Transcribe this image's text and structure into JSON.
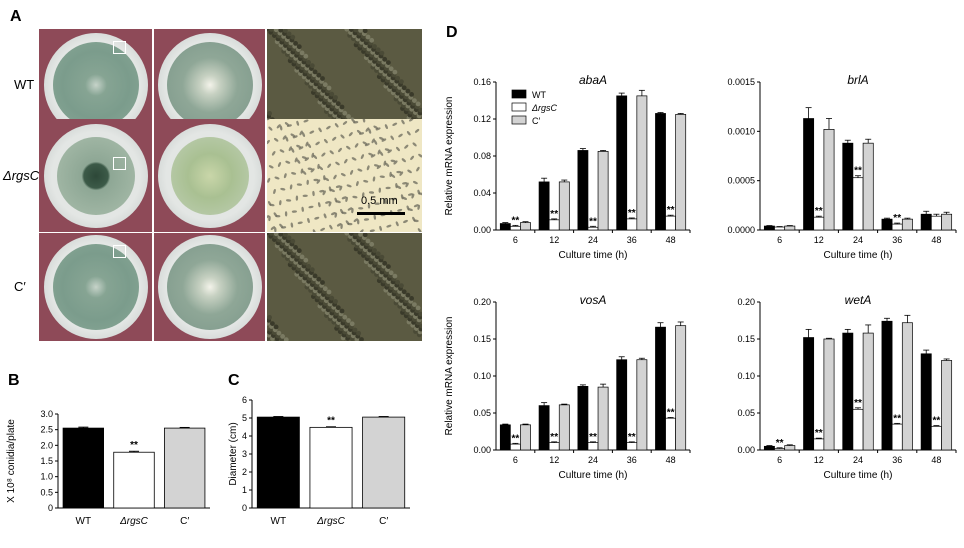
{
  "panel_labels": {
    "a": "A",
    "b": "B",
    "c": "C",
    "d": "D"
  },
  "panel_a": {
    "rows": [
      {
        "label": "WT",
        "style": "wt"
      },
      {
        "label": "ΔrgsC",
        "style": "mut"
      },
      {
        "label": "C′",
        "style": "wt"
      }
    ],
    "scale_bar": "0.5 mm",
    "colors": {
      "background": "#8e4a58",
      "colony_wt": "#7b9c8c",
      "colony_mut": "#9fb5a3",
      "conidia_dark": "#5b5a42",
      "conidia_light": "#efe7c4"
    }
  },
  "chart_data": [
    {
      "id": "B",
      "type": "bar",
      "categories": [
        "WT",
        "ΔrgsC",
        "C′"
      ],
      "values": [
        2.55,
        1.78,
        2.55
      ],
      "errors": [
        0.03,
        0.03,
        0.02
      ],
      "colors": [
        "#000000",
        "#ffffff",
        "#d3d3d3"
      ],
      "ylabel": "X 10⁸ conidia/plate",
      "ylim": [
        0,
        3.0
      ],
      "yticks": [
        "0",
        "0.5",
        "1.0",
        "1.5",
        "2.0",
        "2.5",
        "3.0"
      ],
      "significance": [
        "",
        "**",
        ""
      ]
    },
    {
      "id": "C",
      "type": "bar",
      "categories": [
        "WT",
        "ΔrgsC",
        "C′"
      ],
      "values": [
        5.05,
        4.48,
        5.05
      ],
      "errors": [
        0.03,
        0.03,
        0.03
      ],
      "colors": [
        "#000000",
        "#ffffff",
        "#d3d3d3"
      ],
      "ylabel": "Diameter (cm)",
      "ylim": [
        0,
        6
      ],
      "yticks": [
        "0",
        "1",
        "2",
        "3",
        "4",
        "5",
        "6"
      ],
      "significance": [
        "",
        "**",
        ""
      ]
    },
    {
      "id": "D-abaA",
      "type": "bar",
      "title": "abaA",
      "categories": [
        "6",
        "12",
        "24",
        "36",
        "48"
      ],
      "xlabel": "Culture time (h)",
      "ylabel": "Relative mRNA expression",
      "ylim": [
        0,
        0.16
      ],
      "yticks": [
        "0.00",
        "0.04",
        "0.08",
        "0.12",
        "0.16"
      ],
      "legend": [
        "WT",
        "ΔrgsC",
        "C′"
      ],
      "series": [
        {
          "name": "WT",
          "values": [
            0.007,
            0.052,
            0.086,
            0.145,
            0.126
          ],
          "errors": [
            0.001,
            0.004,
            0.002,
            0.003,
            0.001
          ]
        },
        {
          "name": "ΔrgsC",
          "values": [
            0.004,
            0.011,
            0.003,
            0.012,
            0.015
          ],
          "errors": [
            0.001,
            0.001,
            0.001,
            0.001,
            0.001
          ]
        },
        {
          "name": "C′",
          "values": [
            0.008,
            0.052,
            0.085,
            0.145,
            0.125
          ],
          "errors": [
            0.001,
            0.002,
            0.001,
            0.006,
            0.001
          ]
        }
      ],
      "significance": [
        "**",
        "**",
        "**",
        "**",
        "**"
      ]
    },
    {
      "id": "D-brlA",
      "type": "bar",
      "title": "brlA",
      "categories": [
        "6",
        "12",
        "24",
        "36",
        "48"
      ],
      "xlabel": "Culture time (h)",
      "ylabel": "",
      "ylim": [
        0,
        0.0015
      ],
      "yticks": [
        "0.0000",
        "0.0005",
        "0.0010",
        "0.0015"
      ],
      "series": [
        {
          "name": "WT",
          "values": [
            4e-05,
            0.00113,
            0.00088,
            0.00011,
            0.00016
          ],
          "errors": [
            5e-06,
            0.00011,
            3e-05,
            1e-05,
            3e-05
          ]
        },
        {
          "name": "ΔrgsC",
          "values": [
            3e-05,
            0.00013,
            0.00053,
            6e-05,
            0.00014
          ],
          "errors": [
            5e-06,
            1e-05,
            2e-05,
            1e-05,
            2e-05
          ]
        },
        {
          "name": "C′",
          "values": [
            4e-05,
            0.00102,
            0.00088,
            0.00011,
            0.00016
          ],
          "errors": [
            5e-06,
            0.00011,
            4e-05,
            1e-05,
            2e-05
          ]
        }
      ],
      "significance": [
        "",
        "**",
        "**",
        "**",
        ""
      ]
    },
    {
      "id": "D-vosA",
      "type": "bar",
      "title": "vosA",
      "categories": [
        "6",
        "12",
        "24",
        "36",
        "48"
      ],
      "xlabel": "Culture time (h)",
      "ylabel": "Relative mRNA expression",
      "ylim": [
        0,
        0.2
      ],
      "yticks": [
        "0.00",
        "0.05",
        "0.10",
        "0.15",
        "0.20"
      ],
      "series": [
        {
          "name": "WT",
          "values": [
            0.034,
            0.06,
            0.086,
            0.122,
            0.166
          ],
          "errors": [
            0.001,
            0.004,
            0.002,
            0.004,
            0.006
          ]
        },
        {
          "name": "ΔrgsC",
          "values": [
            0.008,
            0.01,
            0.01,
            0.01,
            0.043
          ],
          "errors": [
            0.001,
            0.001,
            0.001,
            0.001,
            0.001
          ]
        },
        {
          "name": "C′",
          "values": [
            0.034,
            0.061,
            0.085,
            0.122,
            0.168
          ],
          "errors": [
            0.001,
            0.001,
            0.004,
            0.002,
            0.005
          ]
        }
      ],
      "significance": [
        "**",
        "**",
        "**",
        "**",
        "**"
      ]
    },
    {
      "id": "D-wetA",
      "type": "bar",
      "title": "wetA",
      "categories": [
        "6",
        "12",
        "24",
        "36",
        "48"
      ],
      "xlabel": "Culture time (h)",
      "ylabel": "",
      "ylim": [
        0,
        0.2
      ],
      "yticks": [
        "0.00",
        "0.05",
        "0.10",
        "0.15",
        "0.20"
      ],
      "series": [
        {
          "name": "WT",
          "values": [
            0.005,
            0.152,
            0.158,
            0.174,
            0.13
          ],
          "errors": [
            0.001,
            0.011,
            0.005,
            0.004,
            0.005
          ]
        },
        {
          "name": "ΔrgsC",
          "values": [
            0.002,
            0.015,
            0.055,
            0.035,
            0.032
          ],
          "errors": [
            0.001,
            0.001,
            0.002,
            0.001,
            0.001
          ]
        },
        {
          "name": "C′",
          "values": [
            0.006,
            0.15,
            0.158,
            0.172,
            0.121
          ],
          "errors": [
            0.001,
            0.001,
            0.011,
            0.01,
            0.002
          ]
        }
      ],
      "significance": [
        "**",
        "**",
        "**",
        "**",
        "**"
      ]
    }
  ]
}
